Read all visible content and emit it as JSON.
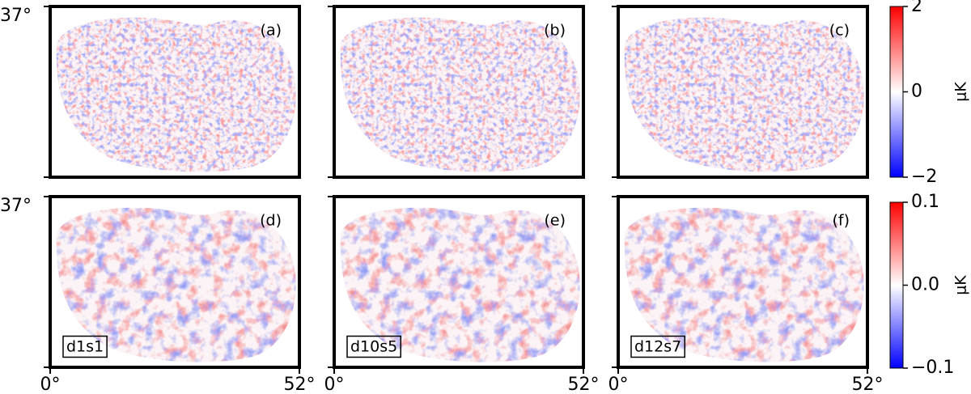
{
  "figure": {
    "y_label": "37°",
    "x_labels": [
      "0°",
      "52°"
    ],
    "panels": [
      {
        "label": "(a)"
      },
      {
        "label": "(b)"
      },
      {
        "label": "(c)"
      },
      {
        "label": "(d)",
        "model": "d1s1"
      },
      {
        "label": "(e)",
        "model": "d10s5"
      },
      {
        "label": "(f)",
        "model": "d12s7"
      }
    ],
    "colorbars": [
      {
        "unit": "μK",
        "lim": [
          -2,
          2
        ],
        "ticks": [
          {
            "value": -2,
            "label": "−2"
          },
          0,
          2
        ]
      },
      {
        "unit": "μK",
        "lim": [
          -0.1,
          0.1
        ],
        "ticks": [
          {
            "value": -0.1,
            "label": "−0.1"
          },
          {
            "value": 0,
            "label": "0.0"
          },
          0.1
        ]
      }
    ]
  }
}
